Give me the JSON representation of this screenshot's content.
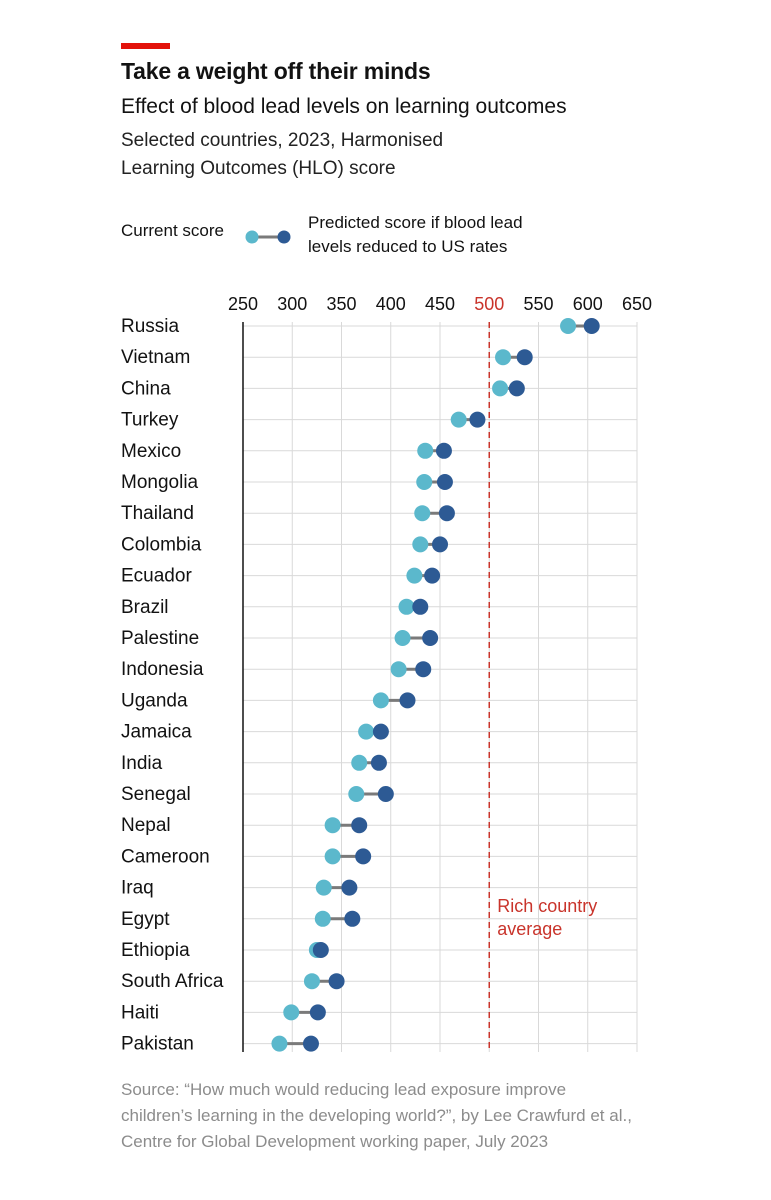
{
  "header": {
    "title": "Take a weight off their minds",
    "subtitle": "Effect of blood lead levels on learning outcomes",
    "description_lines": [
      "Selected countries, 2023, Harmonised",
      "Learning Outcomes (HLO) score"
    ]
  },
  "legend": {
    "current_label": "Current score",
    "predicted_label_lines": [
      "Predicted score if blood lead",
      "levels reduced to US rates"
    ]
  },
  "colors": {
    "current": "#5bb8cc",
    "predicted": "#2d5a94",
    "connector": "#7a7a7a",
    "reference": "#c9342b",
    "accent": "#e3120b",
    "grid": "#d9d9d9"
  },
  "chart_data": {
    "type": "dumbbell",
    "xlim": [
      250,
      650
    ],
    "xticks": [
      250,
      300,
      350,
      400,
      450,
      500,
      550,
      600,
      650
    ],
    "highlight_tick": 500,
    "reference_line": {
      "value": 500,
      "label_lines": [
        "Rich country",
        "average"
      ]
    },
    "series_names": [
      "Current score",
      "Predicted score if blood lead levels reduced to US rates"
    ],
    "rows": [
      {
        "country": "Russia",
        "current": 580,
        "predicted": 604
      },
      {
        "country": "Vietnam",
        "current": 514,
        "predicted": 536
      },
      {
        "country": "China",
        "current": 511,
        "predicted": 528
      },
      {
        "country": "Turkey",
        "current": 469,
        "predicted": 488
      },
      {
        "country": "Mexico",
        "current": 435,
        "predicted": 454
      },
      {
        "country": "Mongolia",
        "current": 434,
        "predicted": 455
      },
      {
        "country": "Thailand",
        "current": 432,
        "predicted": 457
      },
      {
        "country": "Colombia",
        "current": 430,
        "predicted": 450
      },
      {
        "country": "Ecuador",
        "current": 424,
        "predicted": 442
      },
      {
        "country": "Brazil",
        "current": 416,
        "predicted": 430
      },
      {
        "country": "Palestine",
        "current": 412,
        "predicted": 440
      },
      {
        "country": "Indonesia",
        "current": 408,
        "predicted": 433
      },
      {
        "country": "Uganda",
        "current": 390,
        "predicted": 417
      },
      {
        "country": "Jamaica",
        "current": 375,
        "predicted": 390
      },
      {
        "country": "India",
        "current": 368,
        "predicted": 388
      },
      {
        "country": "Senegal",
        "current": 365,
        "predicted": 395
      },
      {
        "country": "Nepal",
        "current": 341,
        "predicted": 368
      },
      {
        "country": "Cameroon",
        "current": 341,
        "predicted": 372
      },
      {
        "country": "Iraq",
        "current": 332,
        "predicted": 358
      },
      {
        "country": "Egypt",
        "current": 331,
        "predicted": 361
      },
      {
        "country": "Ethiopia",
        "current": 325,
        "predicted": 329
      },
      {
        "country": "South Africa",
        "current": 320,
        "predicted": 345
      },
      {
        "country": "Haiti",
        "current": 299,
        "predicted": 326
      },
      {
        "country": "Pakistan",
        "current": 287,
        "predicted": 319
      }
    ]
  },
  "source": {
    "lines": [
      "Source: “How much would reducing lead exposure improve",
      "children’s learning in the developing world?”, by Lee Crawfurd et al.,",
      "Centre for Global Development working paper, July 2023"
    ]
  }
}
